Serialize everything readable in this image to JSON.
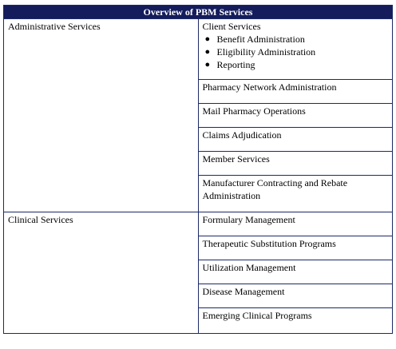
{
  "table": {
    "title": "Overview of PBM Services",
    "categories": [
      {
        "name": "Administrative Services",
        "services": [
          {
            "label": "Client Services",
            "sub_items": [
              "Benefit Administration",
              "Eligibility Administration",
              "Reporting"
            ]
          },
          {
            "label": "Pharmacy Network Administration"
          },
          {
            "label": "Mail Pharmacy Operations"
          },
          {
            "label": "Claims Adjudication"
          },
          {
            "label": "Member Services"
          },
          {
            "label": "Manufacturer Contracting and Rebate Administration"
          }
        ]
      },
      {
        "name": "Clinical Services",
        "services": [
          {
            "label": "Formulary Management"
          },
          {
            "label": "Therapeutic Substitution Programs"
          },
          {
            "label": "Utilization Management"
          },
          {
            "label": "Disease Management"
          },
          {
            "label": "Emerging Clinical Programs"
          }
        ]
      }
    ]
  },
  "colors": {
    "header_bg": "#141c5c",
    "border": "#1c2a66"
  }
}
